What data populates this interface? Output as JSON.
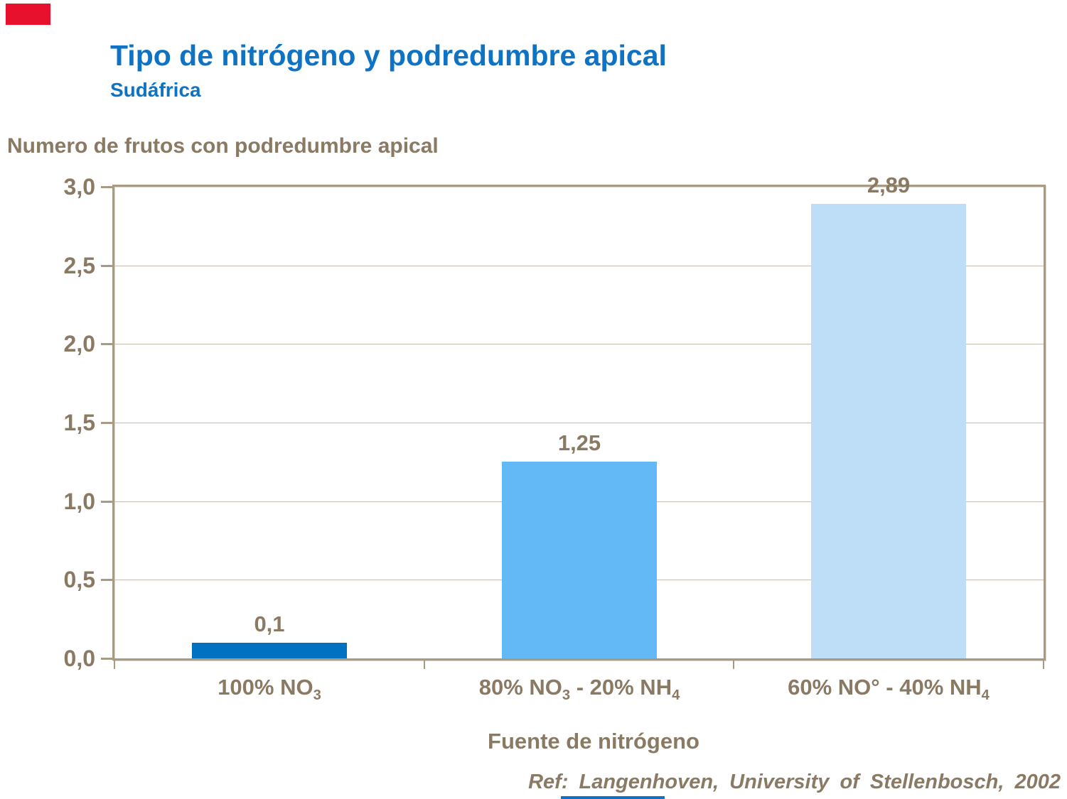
{
  "slide": {
    "title": "Tipo de nitrógeno y podredumbre apical",
    "subtitle": "Sudáfrica",
    "reference": "Ref: Langenhoven, University of Stellenbosch, 2002"
  },
  "accents": {
    "red_block": "#e8112d",
    "bottom_strip": "#1270c5",
    "title_blue": "#0e73c5",
    "text_brown": "#8a7a64",
    "axis_border": "#a89b86",
    "gridline": "#c6bdb0"
  },
  "chart_data": {
    "type": "bar",
    "title": "Tipo de nitrógeno y podredumbre apical — Sudáfrica",
    "ylabel": "Numero de frutos con podredumbre apical",
    "xlabel": "Fuente de nitrógeno",
    "categories": [
      [
        {
          "t": "100% NO"
        },
        {
          "t": "3",
          "sub": true
        }
      ],
      [
        {
          "t": "80% NO"
        },
        {
          "t": "3",
          "sub": true
        },
        {
          "t": " - 20% NH"
        },
        {
          "t": "4",
          "sub": true
        }
      ],
      [
        {
          "t": "60% NO° - 40% NH"
        },
        {
          "t": "4",
          "sub": true
        }
      ]
    ],
    "values": [
      0.1,
      1.25,
      2.89
    ],
    "value_labels": [
      "0,1",
      "1,25",
      "2,89"
    ],
    "bar_colors": [
      "#0071c1",
      "#63b9f5",
      "#bedef8"
    ],
    "ylim": [
      0,
      3
    ],
    "yticks": [
      {
        "v": 0.0,
        "label": "0,0"
      },
      {
        "v": 0.5,
        "label": "0,5"
      },
      {
        "v": 1.0,
        "label": "1,0"
      },
      {
        "v": 1.5,
        "label": "1,5"
      },
      {
        "v": 2.0,
        "label": "2,0"
      },
      {
        "v": 2.5,
        "label": "2,5"
      },
      {
        "v": 3.0,
        "label": "3,0"
      }
    ],
    "grid": true,
    "legend_position": "none"
  }
}
